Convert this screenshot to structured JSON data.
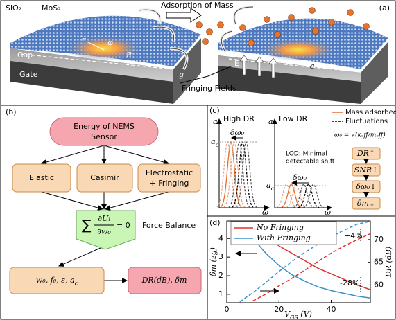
{
  "panel_a": {
    "label": "(a)",
    "sio2": "SiO₂",
    "mos2": "MoS₂",
    "adsorption": "Adsorption of Mass",
    "gap": "Gap",
    "gate": "Gate",
    "r": "r",
    "phi": "φ",
    "R": "R",
    "g": "g",
    "E": "E",
    "a": "a",
    "fringing": "Fringing Fields"
  },
  "panel_b": {
    "label": "(b)",
    "energy": [
      "Energy of NEMS",
      "Sensor"
    ],
    "elastic": "Elastic",
    "casimir": "Casimir",
    "electrostatic": [
      "Electrostatic",
      "+ Fringing"
    ],
    "equation": {
      "sum": "∑",
      "num": "∂Uᵢ",
      "den": "∂w₀",
      "rhs": "= 0"
    },
    "force_balance": "Force Balance",
    "params": {
      "main": "w₀, f₀, ε, a",
      "sub": "c"
    },
    "outputs": "DR(dB), δm"
  },
  "panel_c": {
    "label": "(c)",
    "high": "High DR",
    "low": "Low DR",
    "y_axis": "a",
    "ac": {
      "base": "a",
      "sub": "c"
    },
    "x_axis": "ω",
    "dw": "δω₀",
    "lod": [
      "LOD: Minimal",
      "detectable shift"
    ],
    "legend": [
      "Mass adsorbed",
      "Fluctuations"
    ],
    "omega": "ω₀ = √(kₑff/mₑff)",
    "flow": [
      "DR↑",
      "SNR↑",
      "δω₀↓",
      "δm↓"
    ]
  },
  "chart_data": {
    "type": "line",
    "label": "(d)",
    "xlabel": {
      "main": "V",
      "sub": "GS",
      "rest": " (V)"
    },
    "ylabel": "δm (zg)",
    "y2label": "DR (dB)",
    "x": [
      0,
      5,
      10,
      15,
      20,
      25,
      30,
      35,
      40,
      45,
      50,
      55
    ],
    "xlim": [
      0,
      55
    ],
    "xticks": [
      0,
      20,
      40
    ],
    "ylim": [
      0.55,
      4.94
    ],
    "yticks": [
      1,
      2,
      3,
      4
    ],
    "y2lim": [
      56.1,
      74.1
    ],
    "y2ticks": [
      60,
      65,
      70
    ],
    "series": [
      {
        "name": "No Fringing",
        "color": "#e2302e",
        "style": "solid",
        "values": [
          null,
          4.9,
          4.6,
          4.1,
          3.6,
          3.2,
          2.8,
          2.4,
          2.1,
          1.8,
          1.5,
          1.25
        ]
      },
      {
        "name": "With Fringing",
        "color": "#3a8ec9",
        "style": "solid",
        "values": [
          null,
          4.8,
          4.0,
          3.2,
          2.55,
          2.05,
          1.7,
          1.4,
          1.2,
          1.05,
          0.9,
          0.8
        ]
      },
      {
        "color": "#e2302e",
        "style": "dashed",
        "axis": "y2",
        "values": [
          null,
          null,
          56.5,
          58,
          59.8,
          61.5,
          63.3,
          65.2,
          67,
          68.6,
          70,
          71.3
        ]
      },
      {
        "color": "#3a8ec9",
        "style": "dashed",
        "axis": "y2",
        "values": [
          null,
          56.3,
          58.3,
          60.6,
          63,
          65.2,
          67.2,
          69,
          70.6,
          72.1,
          73.4,
          74
        ]
      }
    ],
    "annotations": [
      "+4%",
      "-28%"
    ]
  }
}
